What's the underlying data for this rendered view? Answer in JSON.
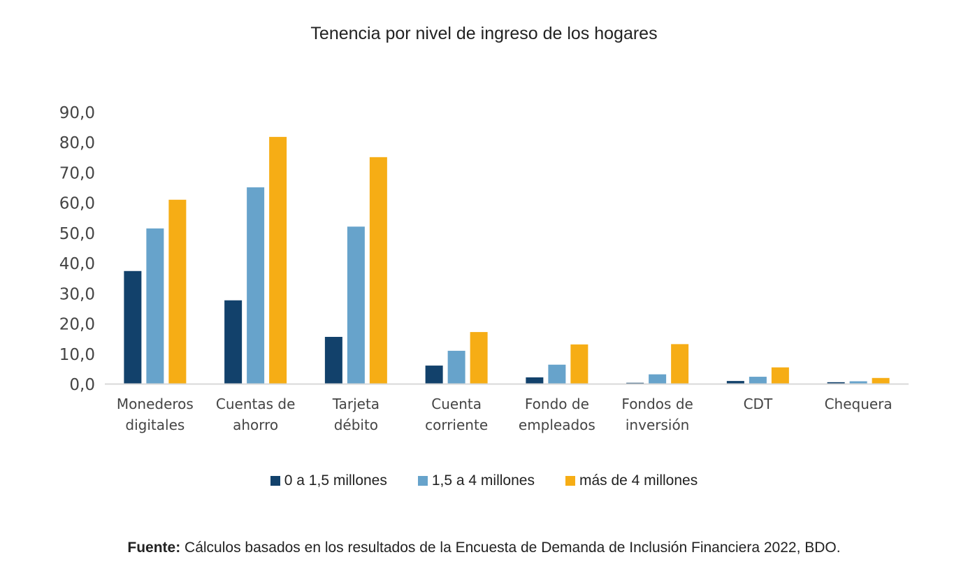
{
  "chart_data": {
    "type": "bar",
    "title": "Tenencia por nivel de ingreso de los hogares",
    "xlabel": "",
    "ylabel": "",
    "ylim": [
      0,
      90
    ],
    "yticks": [
      "0,0",
      "10,0",
      "20,0",
      "30,0",
      "40,0",
      "50,0",
      "60,0",
      "70,0",
      "80,0",
      "90,0"
    ],
    "grid": false,
    "legend_position": "bottom",
    "categories": [
      [
        "Monederos",
        "digitales"
      ],
      [
        "Cuentas de",
        "ahorro"
      ],
      [
        "Tarjeta",
        "débito"
      ],
      [
        "Cuenta",
        "corriente"
      ],
      [
        "Fondo de",
        "empleados"
      ],
      [
        "Fondos de",
        "inversión"
      ],
      [
        "CDT"
      ],
      [
        "Chequera"
      ]
    ],
    "series": [
      {
        "name": "0 a 1,5 millones",
        "color": "#12416b",
        "values": [
          37.3,
          27.6,
          15.5,
          6.0,
          2.1,
          0.3,
          0.9,
          0.5
        ]
      },
      {
        "name": "1,5 a 4 millones",
        "color": "#67a3cb",
        "values": [
          51.4,
          65.0,
          52.0,
          10.9,
          6.3,
          3.1,
          2.3,
          0.8
        ]
      },
      {
        "name": "más de 4 millones",
        "color": "#f6ad15",
        "values": [
          60.9,
          81.7,
          75.0,
          17.1,
          13.0,
          13.1,
          5.4,
          1.9
        ]
      }
    ]
  },
  "footer": {
    "label": "Fuente:",
    "text": " Cálculos basados en los resultados de la Encuesta de Demanda de Inclusión Financiera 2022, BDO."
  }
}
